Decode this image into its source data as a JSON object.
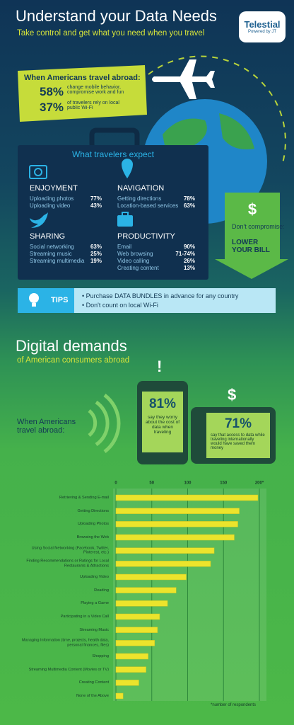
{
  "header": {
    "title": "Understand your Data Needs",
    "subtitle": "Take control and get what you need when you travel",
    "logo": "Telestial",
    "logo_sub": "Powered by JT"
  },
  "abroad_box": {
    "heading": "When Americans travel abroad:",
    "stats": [
      {
        "value": "58%",
        "text": "change mobile behavior, compromise work and fun"
      },
      {
        "value": "37%",
        "text": "of travelers rely on local public Wi-Fi"
      }
    ]
  },
  "expect": {
    "title": "What travelers expect",
    "groups": [
      {
        "name": "ENJOYMENT",
        "rows": [
          [
            "Uploading photos",
            "77%"
          ],
          [
            "Uploading video",
            "43%"
          ]
        ]
      },
      {
        "name": "NAVIGATION",
        "rows": [
          [
            "Getting directions",
            "78%"
          ],
          [
            "Location-based services",
            "63%"
          ]
        ]
      },
      {
        "name": "SHARING",
        "rows": [
          [
            "Social networking",
            "63%"
          ],
          [
            "Streaming music",
            "25%"
          ],
          [
            "Streaming multimedia",
            "19%"
          ]
        ]
      },
      {
        "name": "PRODUCTIVITY",
        "rows": [
          [
            "Email",
            "90%"
          ],
          [
            "Web browsing",
            "71-74%"
          ],
          [
            "Video calling",
            "26%"
          ],
          [
            "Creating content",
            "13%"
          ]
        ]
      }
    ]
  },
  "bill": {
    "icon": "$",
    "line1": "Don't compromise:",
    "line2": "LOWER YOUR BILL"
  },
  "tips": {
    "label": "TIPS",
    "items": [
      "Purchase DATA BUNDLES in advance for any country",
      "Don't count on local Wi-Fi"
    ]
  },
  "demands": {
    "title": "Digital demands",
    "subtitle": "of American consumers abroad",
    "lead": "When Americans travel abroad:",
    "phone": {
      "icon": "!",
      "value": "81%",
      "text": "say they worry about the cost of data when traveling"
    },
    "tablet": {
      "icon": "$",
      "value": "71%",
      "text": "say that access to data while traveling internationally would have saved them money"
    }
  },
  "chart_data": {
    "type": "bar",
    "orientation": "horizontal",
    "categories": [
      "Retrieving & Sending E-mail",
      "Getting Directions",
      "Uploading Photos",
      "Browsing the Web",
      "Using Social Networking (Facebook, Twitter, Pinterest, etc.)",
      "Finding Recommendations or Ratings for Local Restaurants & Attractions",
      "Uploading Video",
      "Reading",
      "Playing a Game",
      "Participating in a Video Call",
      "Streaming Music",
      "Managing Information (time, projects, health data, personal finances, files)",
      "Shopping",
      "Streaming Multimedia Content (Movies or TV)",
      "Creating Content",
      "None of the Above"
    ],
    "values": [
      198,
      172,
      170,
      165,
      137,
      132,
      98,
      84,
      72,
      61,
      58,
      54,
      45,
      42,
      32,
      10
    ],
    "color": "#ece42c",
    "xlim": [
      0,
      200
    ],
    "xticks": [
      0,
      50,
      100,
      150,
      {
        "value": 200,
        "label": "200*"
      }
    ],
    "grid": true,
    "note": "*number of respondents"
  }
}
